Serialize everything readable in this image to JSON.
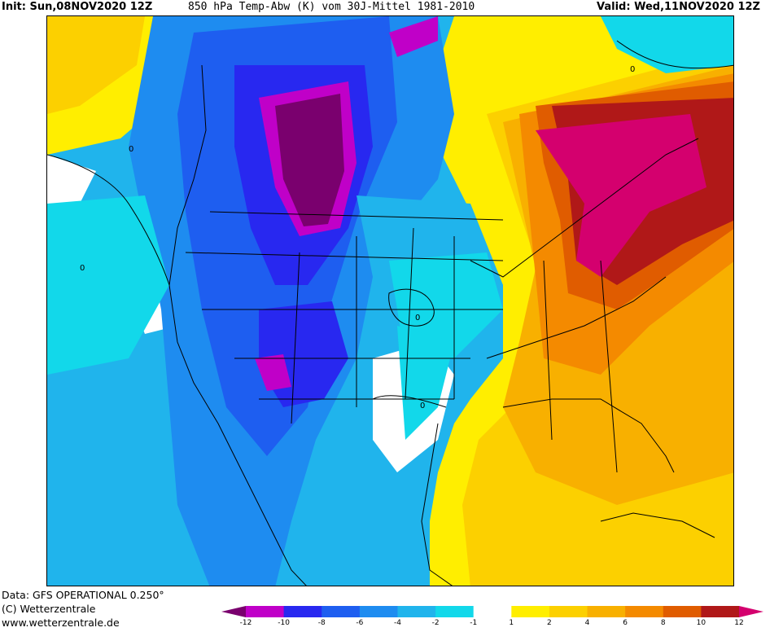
{
  "header": {
    "init": "Init: Sun,08NOV2020 12Z",
    "product": "850 hPa Temp-Abw (K) vom 30J-Mittel 1981-2010",
    "valid": "Valid: Wed,11NOV2020 12Z"
  },
  "footer": {
    "data_line": "Data: GFS OPERATIONAL 0.250°",
    "copyright": "(C) Wetterzentrale",
    "website": "www.wetterzentrale.de"
  },
  "map": {
    "contour_labels": [
      "0",
      "0",
      "0",
      "0",
      "0"
    ]
  },
  "legend": {
    "ticks": [
      "-12",
      "-10",
      "-8",
      "-6",
      "-4",
      "-2",
      "-1",
      "1",
      "2",
      "4",
      "6",
      "8",
      "10",
      "12"
    ],
    "colors": [
      "#7a006e",
      "#c000c8",
      "#2828f0",
      "#1e5ef0",
      "#1e8cf0",
      "#20b4ec",
      "#12d8ea",
      "#ffffff",
      "#ffee00",
      "#fcd000",
      "#f8b000",
      "#f48a00",
      "#e05c00",
      "#b01818",
      "#d4006e"
    ]
  }
}
